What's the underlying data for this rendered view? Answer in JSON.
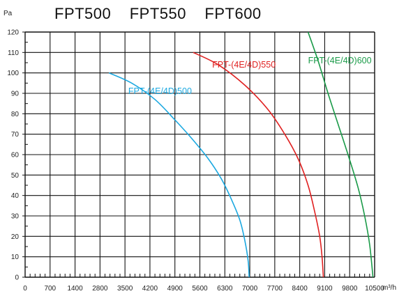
{
  "chart_data": {
    "type": "line",
    "title": "FPT500    FPT550    FPT600",
    "ylabel": "Pa",
    "xlabel": "m³/h",
    "xlim": [
      0,
      10500
    ],
    "ylim": [
      0,
      120
    ],
    "x_ticks": [
      "0",
      "700",
      "1400",
      "2800",
      "3500",
      "4200",
      "4900",
      "5600",
      "6300",
      "7000",
      "7700",
      "8400",
      "9100",
      "9800",
      "10500"
    ],
    "y_ticks": [
      "0",
      "10",
      "20",
      "30",
      "40",
      "50",
      "60",
      "70",
      "80",
      "90",
      "100",
      "110",
      "120"
    ],
    "grid": true,
    "series": [
      {
        "name": "FPT-(4E/4D)500",
        "color": "#1ba8e0",
        "label_at": [
          3100,
          91
        ],
        "points": [
          [
            2520,
            100
          ],
          [
            3200,
            95
          ],
          [
            3900,
            87
          ],
          [
            4500,
            77
          ],
          [
            5000,
            68
          ],
          [
            5500,
            58
          ],
          [
            5900,
            48
          ],
          [
            6200,
            38
          ],
          [
            6450,
            28
          ],
          [
            6600,
            18
          ],
          [
            6700,
            8
          ],
          [
            6730,
            0
          ]
        ]
      },
      {
        "name": "FPT-(4E/4D)550",
        "color": "#e02020",
        "label_at": [
          5620,
          104
        ],
        "points": [
          [
            5050,
            110
          ],
          [
            5800,
            104
          ],
          [
            6600,
            94
          ],
          [
            7300,
            82
          ],
          [
            7800,
            70
          ],
          [
            8200,
            58
          ],
          [
            8500,
            45
          ],
          [
            8700,
            32
          ],
          [
            8850,
            20
          ],
          [
            8920,
            10
          ],
          [
            8960,
            0
          ]
        ]
      },
      {
        "name": "FPT-(4E/4D)600",
        "color": "#1a9a48",
        "label_at": [
          8500,
          106
        ],
        "points": [
          [
            8500,
            120
          ],
          [
            8800,
            106
          ],
          [
            9100,
            90
          ],
          [
            9400,
            75
          ],
          [
            9700,
            60
          ],
          [
            10000,
            44
          ],
          [
            10200,
            30
          ],
          [
            10350,
            16
          ],
          [
            10450,
            0
          ]
        ]
      }
    ]
  }
}
